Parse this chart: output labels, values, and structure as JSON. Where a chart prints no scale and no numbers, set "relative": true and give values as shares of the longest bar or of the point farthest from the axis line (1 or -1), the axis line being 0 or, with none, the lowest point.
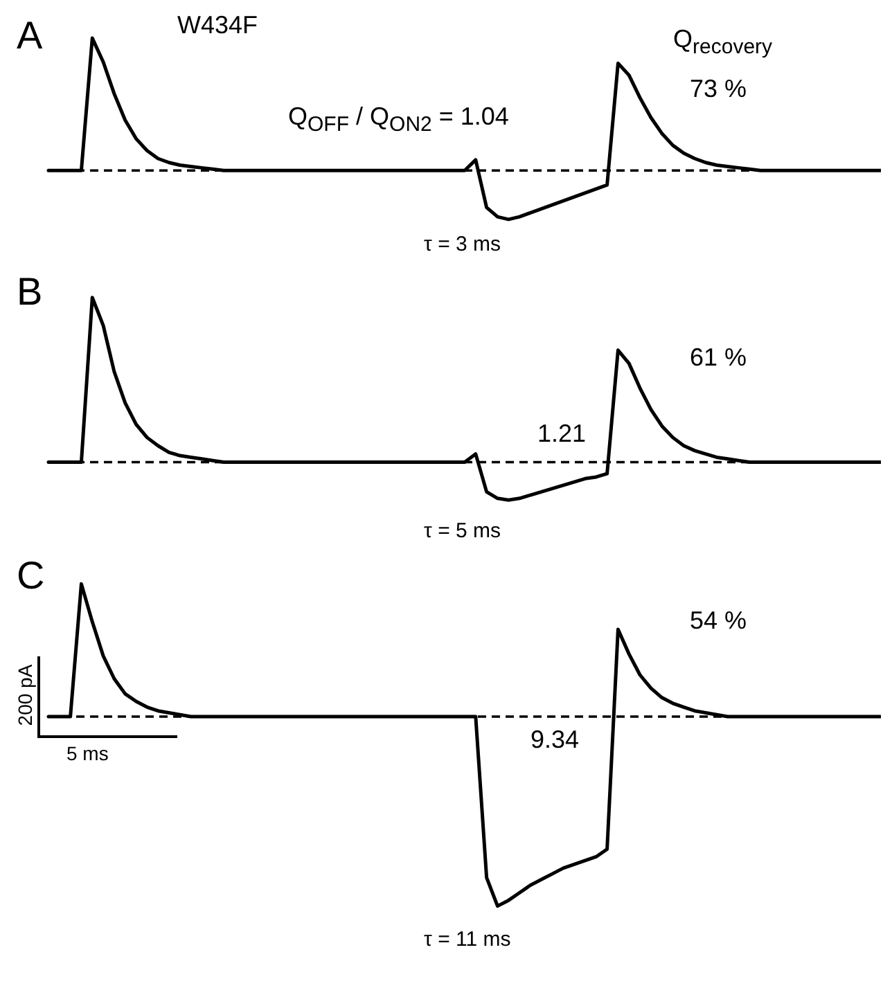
{
  "chart_data": [
    {
      "type": "line",
      "title": "A",
      "relative": true,
      "color": "#000000",
      "marker": "none",
      "line_style": "solid",
      "annotations": [
        "W434F",
        "Q$_{OFF}$ / Q$_{ON2}$ = 1.04",
        "Q$_{recovery}$",
        "73 %",
        "τ = 3 ms"
      ],
      "ref_lines": [
        {
          "axis": "y",
          "value": 0,
          "line_style": "dashed",
          "color": "#000000"
        }
      ],
      "categories": [
        null,
        null,
        null,
        null,
        null,
        null,
        null,
        null,
        null,
        null,
        null,
        null,
        null,
        null,
        null,
        null,
        null,
        null,
        null,
        null,
        null,
        null,
        null,
        null,
        null,
        null,
        null,
        null,
        null,
        null,
        null,
        null,
        null,
        null,
        null,
        null,
        null,
        null,
        null,
        null,
        null,
        null,
        null,
        null,
        null,
        null,
        null,
        null,
        null,
        null,
        null,
        null,
        null,
        null,
        null,
        null,
        null,
        null,
        null,
        null,
        null,
        null,
        null,
        null,
        null,
        null,
        null,
        null,
        null,
        null,
        null,
        null,
        null,
        null,
        null,
        null,
        null
      ],
      "values": [
        0,
        0,
        0,
        0,
        1.0,
        0.82,
        0.58,
        0.38,
        0.24,
        0.15,
        0.09,
        0.06,
        0.04,
        0.03,
        0.02,
        0.01,
        0,
        0,
        0,
        0,
        0,
        0,
        0,
        0,
        0,
        0,
        0,
        0,
        0,
        0,
        0,
        0,
        0,
        0,
        0,
        0,
        0,
        0,
        0,
        0.08,
        -0.28,
        -0.35,
        -0.37,
        -0.35,
        -0.32,
        -0.29,
        -0.26,
        -0.23,
        -0.2,
        -0.17,
        -0.14,
        -0.11,
        0.81,
        0.72,
        0.55,
        0.4,
        0.28,
        0.19,
        0.13,
        0.09,
        0.06,
        0.04,
        0.03,
        0.02,
        0.01,
        0,
        0,
        0,
        0,
        0,
        0,
        0,
        0,
        0,
        0,
        0,
        0
      ]
    },
    {
      "type": "line",
      "title": "B",
      "relative": true,
      "color": "#000000",
      "marker": "none",
      "line_style": "solid",
      "annotations": [
        "1.21",
        "61 %",
        "τ = 5 ms"
      ],
      "ref_lines": [
        {
          "axis": "y",
          "value": 0,
          "line_style": "dashed",
          "color": "#000000"
        }
      ],
      "categories": [
        null,
        null,
        null,
        null,
        null,
        null,
        null,
        null,
        null,
        null,
        null,
        null,
        null,
        null,
        null,
        null,
        null,
        null,
        null,
        null,
        null,
        null,
        null,
        null,
        null,
        null,
        null,
        null,
        null,
        null,
        null,
        null,
        null,
        null,
        null,
        null,
        null,
        null,
        null,
        null,
        null,
        null,
        null,
        null,
        null,
        null,
        null,
        null,
        null,
        null,
        null,
        null,
        null,
        null,
        null,
        null,
        null,
        null,
        null,
        null,
        null,
        null,
        null,
        null,
        null,
        null,
        null,
        null,
        null,
        null,
        null,
        null,
        null,
        null,
        null,
        null,
        null
      ],
      "values": [
        0,
        0,
        0,
        0,
        1.0,
        0.83,
        0.55,
        0.36,
        0.23,
        0.15,
        0.1,
        0.06,
        0.04,
        0.03,
        0.02,
        0.01,
        0,
        0,
        0,
        0,
        0,
        0,
        0,
        0,
        0,
        0,
        0,
        0,
        0,
        0,
        0,
        0,
        0,
        0,
        0,
        0,
        0,
        0,
        0,
        0.05,
        -0.18,
        -0.22,
        -0.23,
        -0.22,
        -0.2,
        -0.18,
        -0.16,
        -0.14,
        -0.12,
        -0.1,
        -0.09,
        -0.07,
        0.68,
        0.6,
        0.45,
        0.32,
        0.22,
        0.15,
        0.1,
        0.07,
        0.05,
        0.03,
        0.02,
        0.01,
        0,
        0,
        0,
        0,
        0,
        0,
        0,
        0,
        0,
        0,
        0,
        0,
        0
      ]
    },
    {
      "type": "line",
      "title": "C",
      "relative": true,
      "color": "#000000",
      "marker": "none",
      "line_style": "solid",
      "annotations": [
        "54 %",
        "9.34",
        "τ = 11 ms",
        "200 pA",
        "5 ms"
      ],
      "ref_lines": [
        {
          "axis": "y",
          "value": 0,
          "line_style": "dashed",
          "color": "#000000"
        }
      ],
      "categories": [
        null,
        null,
        null,
        null,
        null,
        null,
        null,
        null,
        null,
        null,
        null,
        null,
        null,
        null,
        null,
        null,
        null,
        null,
        null,
        null,
        null,
        null,
        null,
        null,
        null,
        null,
        null,
        null,
        null,
        null,
        null,
        null,
        null,
        null,
        null,
        null,
        null,
        null,
        null,
        null,
        null,
        null,
        null,
        null,
        null,
        null,
        null,
        null,
        null,
        null,
        null,
        null,
        null,
        null,
        null,
        null,
        null,
        null,
        null,
        null,
        null,
        null,
        null,
        null,
        null,
        null,
        null,
        null,
        null,
        null,
        null,
        null,
        null,
        null,
        null,
        null,
        null
      ],
      "values": [
        0,
        0,
        0,
        0.7,
        0.5,
        0.32,
        0.2,
        0.12,
        0.08,
        0.05,
        0.03,
        0.02,
        0.01,
        0,
        0,
        0,
        0,
        0,
        0,
        0,
        0,
        0,
        0,
        0,
        0,
        0,
        0,
        0,
        0,
        0,
        0,
        0,
        0,
        0,
        0,
        0,
        0,
        0,
        0,
        0,
        -0.85,
        -1.0,
        -0.97,
        -0.93,
        -0.89,
        -0.86,
        -0.83,
        -0.8,
        -0.78,
        -0.76,
        -0.74,
        -0.7,
        0.46,
        0.33,
        0.22,
        0.15,
        0.1,
        0.07,
        0.05,
        0.03,
        0.02,
        0.01,
        0,
        0,
        0,
        0,
        0,
        0,
        0,
        0,
        0,
        0,
        0,
        0,
        0,
        0,
        0
      ]
    }
  ]
}
